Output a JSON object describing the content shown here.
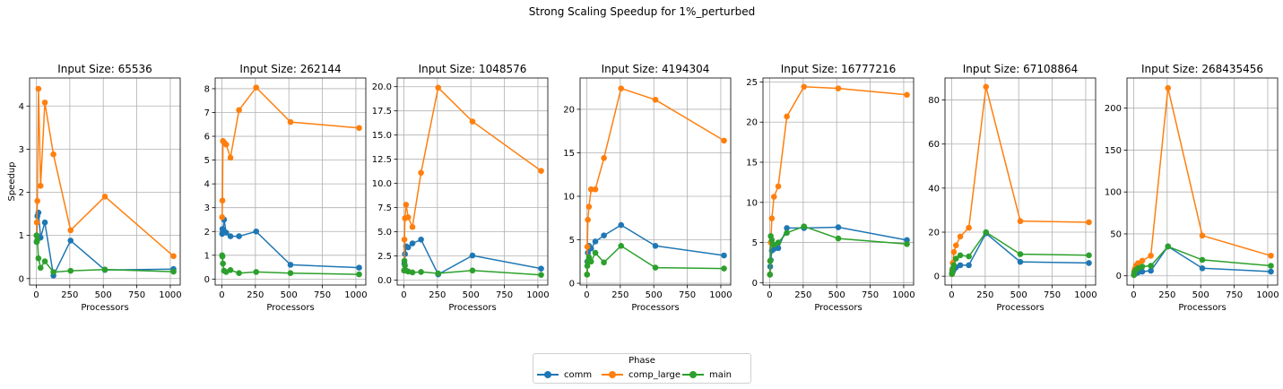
{
  "figure": {
    "suptitle": "Strong Scaling Speedup for 1%_perturbed",
    "legend": {
      "title": "Phase",
      "entries": [
        {
          "name": "comm",
          "color": "#1f77b4"
        },
        {
          "name": "comp_large",
          "color": "#ff7f0e"
        },
        {
          "name": "main",
          "color": "#2ca02c"
        }
      ]
    }
  },
  "chart_data": [
    {
      "type": "line",
      "title": "Input Size: 65536",
      "xlabel": "Processors",
      "ylabel": "Speedup",
      "xlim": [
        -50,
        1074
      ],
      "ylim": [
        -0.15,
        4.65
      ],
      "xticks": [
        0,
        250,
        500,
        750,
        1000
      ],
      "yticks": [
        0,
        1,
        2,
        3,
        4
      ],
      "grid": true,
      "series": [
        {
          "name": "comm",
          "color": "#1f77b4",
          "x": [
            2,
            4,
            8,
            16,
            32,
            64,
            128,
            256,
            512,
            1024
          ],
          "y": [
            0.85,
            1.0,
            1.45,
            1.53,
            0.95,
            1.3,
            0.07,
            0.88,
            0.2,
            0.22
          ]
        },
        {
          "name": "comp_large",
          "color": "#ff7f0e",
          "x": [
            2,
            4,
            8,
            16,
            32,
            64,
            128,
            256,
            512,
            1024
          ],
          "y": [
            1.0,
            1.3,
            1.8,
            4.4,
            2.15,
            4.08,
            2.88,
            1.12,
            1.9,
            0.52
          ]
        },
        {
          "name": "main",
          "color": "#2ca02c",
          "x": [
            2,
            4,
            8,
            16,
            32,
            64,
            128,
            256,
            512,
            1024
          ],
          "y": [
            1.0,
            0.85,
            0.9,
            0.47,
            0.25,
            0.4,
            0.15,
            0.18,
            0.21,
            0.16
          ]
        }
      ]
    },
    {
      "type": "line",
      "title": "Input Size: 262144",
      "xlabel": "Processors",
      "ylabel": "",
      "xlim": [
        -50,
        1074
      ],
      "ylim": [
        -0.25,
        8.45
      ],
      "xticks": [
        0,
        250,
        500,
        750,
        1000
      ],
      "yticks": [
        0,
        1,
        2,
        3,
        4,
        5,
        6,
        7,
        8
      ],
      "grid": true,
      "series": [
        {
          "name": "comm",
          "color": "#1f77b4",
          "x": [
            2,
            4,
            8,
            16,
            32,
            64,
            128,
            256,
            512,
            1024
          ],
          "y": [
            1.9,
            2.1,
            2.0,
            2.5,
            1.95,
            1.8,
            1.8,
            2.0,
            0.6,
            0.48
          ]
        },
        {
          "name": "comp_large",
          "color": "#ff7f0e",
          "x": [
            2,
            4,
            8,
            16,
            32,
            64,
            128,
            256,
            512,
            1024
          ],
          "y": [
            2.6,
            3.3,
            5.8,
            5.75,
            5.65,
            5.1,
            7.1,
            8.05,
            6.6,
            6.35
          ]
        },
        {
          "name": "main",
          "color": "#2ca02c",
          "x": [
            2,
            4,
            8,
            16,
            32,
            64,
            128,
            256,
            512,
            1024
          ],
          "y": [
            1.0,
            0.95,
            0.65,
            0.35,
            0.3,
            0.38,
            0.25,
            0.3,
            0.25,
            0.2
          ]
        }
      ]
    },
    {
      "type": "line",
      "title": "Input Size: 1048576",
      "xlabel": "Processors",
      "ylabel": "",
      "xlim": [
        -50,
        1074
      ],
      "ylim": [
        -0.5,
        20.9
      ],
      "xticks": [
        0,
        250,
        500,
        750,
        1000
      ],
      "yticks": [
        0.0,
        2.5,
        5.0,
        7.5,
        10.0,
        12.5,
        15.0,
        17.5,
        20.0
      ],
      "yticklabels": [
        "0.0",
        "2.5",
        "5.0",
        "7.5",
        "10.0",
        "12.5",
        "15.0",
        "17.5",
        "20.0"
      ],
      "grid": true,
      "series": [
        {
          "name": "comm",
          "color": "#1f77b4",
          "x": [
            2,
            4,
            8,
            16,
            32,
            64,
            128,
            256,
            512,
            1024
          ],
          "y": [
            1.0,
            1.7,
            2.7,
            3.5,
            3.4,
            3.8,
            4.2,
            0.6,
            2.55,
            1.2
          ]
        },
        {
          "name": "comp_large",
          "color": "#ff7f0e",
          "x": [
            2,
            4,
            8,
            16,
            32,
            64,
            128,
            256,
            512,
            1024
          ],
          "y": [
            1.0,
            4.2,
            6.4,
            7.8,
            6.5,
            5.5,
            11.1,
            19.9,
            16.4,
            11.3
          ]
        },
        {
          "name": "main",
          "color": "#2ca02c",
          "x": [
            2,
            4,
            8,
            16,
            32,
            64,
            128,
            256,
            512,
            1024
          ],
          "y": [
            1.0,
            2.0,
            1.5,
            1.0,
            0.9,
            0.8,
            0.85,
            0.7,
            1.0,
            0.55
          ]
        }
      ]
    },
    {
      "type": "line",
      "title": "Input Size: 4194304",
      "xlabel": "Processors",
      "ylabel": "",
      "xlim": [
        -50,
        1074
      ],
      "ylim": [
        -0.2,
        23.6
      ],
      "xticks": [
        0,
        250,
        500,
        750,
        1000
      ],
      "yticks": [
        0,
        5,
        10,
        15,
        20
      ],
      "grid": true,
      "series": [
        {
          "name": "comm",
          "color": "#1f77b4",
          "x": [
            2,
            4,
            8,
            16,
            32,
            64,
            128,
            256,
            512,
            1024
          ],
          "y": [
            1.0,
            2.5,
            3.5,
            4.3,
            4.0,
            4.8,
            5.5,
            6.7,
            4.3,
            3.2
          ]
        },
        {
          "name": "comp_large",
          "color": "#ff7f0e",
          "x": [
            2,
            4,
            8,
            16,
            32,
            64,
            128,
            256,
            512,
            1024
          ],
          "y": [
            1.0,
            4.2,
            7.3,
            8.8,
            10.8,
            10.8,
            14.4,
            22.4,
            21.1,
            16.4
          ]
        },
        {
          "name": "main",
          "color": "#2ca02c",
          "x": [
            2,
            4,
            8,
            16,
            32,
            64,
            128,
            256,
            512,
            1024
          ],
          "y": [
            1.0,
            2.0,
            2.5,
            3.0,
            2.5,
            3.5,
            2.4,
            4.3,
            1.8,
            1.7
          ]
        }
      ]
    },
    {
      "type": "line",
      "title": "Input Size: 16777216",
      "xlabel": "Processors",
      "ylabel": "",
      "xlim": [
        -50,
        1074
      ],
      "ylim": [
        -0.3,
        25.5
      ],
      "xticks": [
        0,
        250,
        500,
        750,
        1000
      ],
      "yticks": [
        0,
        5,
        10,
        15,
        20,
        25
      ],
      "grid": true,
      "series": [
        {
          "name": "comm",
          "color": "#1f77b4",
          "x": [
            2,
            4,
            8,
            16,
            32,
            64,
            128,
            256,
            512,
            1024
          ],
          "y": [
            1.0,
            2.0,
            2.8,
            4.0,
            4.2,
            4.3,
            6.8,
            6.8,
            6.9,
            5.3
          ]
        },
        {
          "name": "comp_large",
          "color": "#ff7f0e",
          "x": [
            2,
            4,
            8,
            16,
            32,
            64,
            128,
            256,
            512,
            1024
          ],
          "y": [
            1.0,
            2.7,
            5.0,
            8.0,
            10.7,
            12.0,
            20.7,
            24.4,
            24.2,
            23.4
          ]
        },
        {
          "name": "main",
          "color": "#2ca02c",
          "x": [
            2,
            4,
            8,
            16,
            32,
            64,
            128,
            256,
            512,
            1024
          ],
          "y": [
            1.0,
            2.7,
            5.8,
            5.3,
            4.7,
            5.0,
            6.2,
            7.0,
            5.5,
            4.8
          ]
        }
      ]
    },
    {
      "type": "line",
      "title": "Input Size: 67108864",
      "xlabel": "Processors",
      "ylabel": "",
      "xlim": [
        -50,
        1074
      ],
      "ylim": [
        -4.0,
        90.0
      ],
      "xticks": [
        0,
        250,
        500,
        750,
        1000
      ],
      "yticks": [
        0,
        20,
        40,
        60,
        80
      ],
      "grid": true,
      "series": [
        {
          "name": "comm",
          "color": "#1f77b4",
          "x": [
            2,
            4,
            8,
            16,
            32,
            64,
            128,
            256,
            512,
            1024
          ],
          "y": [
            1.0,
            1.5,
            2.0,
            3.0,
            4.0,
            5.0,
            5.0,
            19.5,
            6.5,
            6.0
          ]
        },
        {
          "name": "comp_large",
          "color": "#ff7f0e",
          "x": [
            2,
            4,
            8,
            16,
            32,
            64,
            128,
            256,
            512,
            1024
          ],
          "y": [
            1.0,
            3.0,
            6.0,
            11.0,
            14.0,
            18.0,
            22.0,
            86.0,
            25.0,
            24.5
          ]
        },
        {
          "name": "main",
          "color": "#2ca02c",
          "x": [
            2,
            4,
            8,
            16,
            32,
            64,
            128,
            256,
            512,
            1024
          ],
          "y": [
            1.0,
            2.0,
            3.5,
            5.0,
            8.0,
            9.5,
            9.0,
            20.0,
            10.0,
            9.5
          ]
        }
      ]
    },
    {
      "type": "line",
      "title": "Input Size: 268435456",
      "xlabel": "Processors",
      "ylabel": "",
      "xlim": [
        -50,
        1074
      ],
      "ylim": [
        -11.0,
        236.0
      ],
      "xticks": [
        0,
        250,
        500,
        750,
        1000
      ],
      "yticks": [
        0,
        50,
        100,
        150,
        200
      ],
      "grid": true,
      "series": [
        {
          "name": "comm",
          "color": "#1f77b4",
          "x": [
            2,
            4,
            8,
            16,
            32,
            64,
            128,
            256,
            512,
            1024
          ],
          "y": [
            1.0,
            1.5,
            2.0,
            3.0,
            4.0,
            5.0,
            6.0,
            35.0,
            9.0,
            5.0
          ]
        },
        {
          "name": "comp_large",
          "color": "#ff7f0e",
          "x": [
            2,
            4,
            8,
            16,
            32,
            64,
            128,
            256,
            512,
            1024
          ],
          "y": [
            1.0,
            5.0,
            8.0,
            12.0,
            15.0,
            18.0,
            24.0,
            224.0,
            48.0,
            24.0
          ]
        },
        {
          "name": "main",
          "color": "#2ca02c",
          "x": [
            2,
            4,
            8,
            16,
            32,
            64,
            128,
            256,
            512,
            1024
          ],
          "y": [
            1.0,
            3.0,
            5.0,
            7.0,
            9.0,
            11.0,
            12.0,
            35.0,
            19.0,
            12.0
          ]
        }
      ]
    }
  ]
}
